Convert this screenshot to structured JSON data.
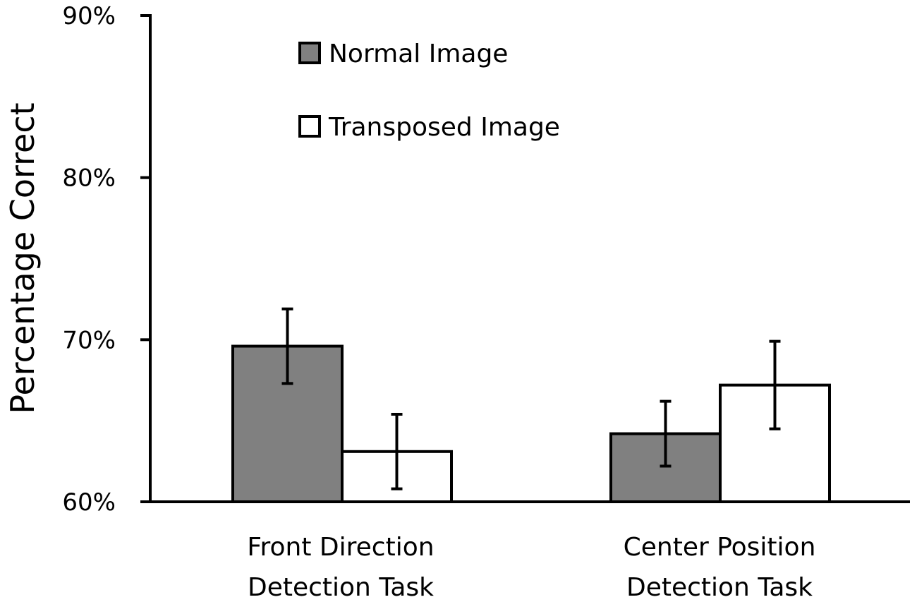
{
  "chart_data": {
    "type": "bar",
    "title": "",
    "xlabel": "",
    "ylabel": "Percentage Correct",
    "ylim": [
      0.6,
      0.9
    ],
    "yticks": [
      {
        "value": 0.6,
        "label": "60%"
      },
      {
        "value": 0.7,
        "label": "70%"
      },
      {
        "value": 0.8,
        "label": "80%"
      },
      {
        "value": 0.9,
        "label": "90%"
      }
    ],
    "categories": [
      [
        "Front Direction",
        "Detection Task"
      ],
      [
        "Center Position",
        "Detection Task"
      ]
    ],
    "series": [
      {
        "name": "Normal Image",
        "color": "#808080",
        "values": [
          0.696,
          0.642
        ],
        "error": [
          0.023,
          0.02
        ]
      },
      {
        "name": "Transposed Image",
        "color": "#ffffff",
        "values": [
          0.631,
          0.672
        ],
        "error": [
          0.023,
          0.027
        ]
      }
    ],
    "legend_position": "top-center",
    "grid": false
  }
}
